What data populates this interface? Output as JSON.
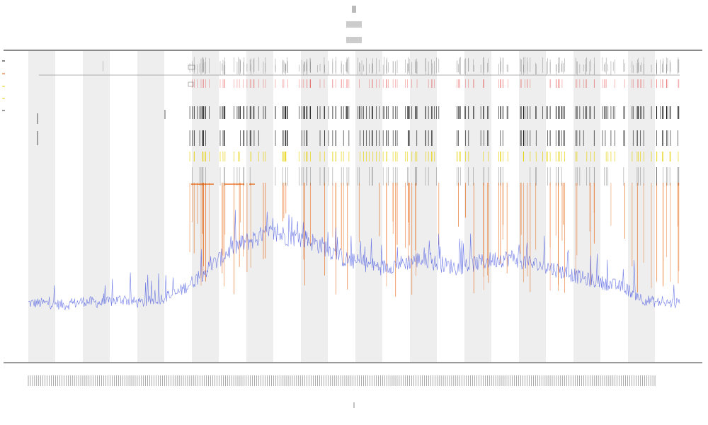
{
  "chart_data": {
    "type": "line",
    "title": "",
    "subtitle": "",
    "xlabel": "",
    "ylabel": "",
    "grid": false,
    "legend_placement": "top-left",
    "band_count": 12,
    "colors": {
      "background": "#ffffff",
      "band": "#eeeeee",
      "baseline": "#0000cc",
      "spikes": "#e65c00",
      "yellow": "#e6d000",
      "red": "#dd2222",
      "black": "#111111",
      "axis": "#333333"
    },
    "series": [
      {
        "key": "baseline",
        "color": "#3344dd",
        "values": [
          0.1,
          0.1,
          0.09,
          0.11,
          0.1,
          0.12,
          0.1,
          0.12,
          0.15,
          0.22,
          0.3,
          0.38,
          0.42,
          0.45,
          0.44,
          0.42,
          0.38,
          0.32,
          0.3,
          0.28,
          0.3,
          0.32,
          0.3,
          0.28,
          0.3,
          0.32,
          0.33,
          0.3,
          0.28,
          0.25,
          0.22,
          0.2,
          0.18,
          0.12,
          0.1,
          0.1
        ]
      },
      {
        "key": "spikes",
        "color": "#e65c00",
        "values": []
      },
      {
        "key": "yellow",
        "color": "#e6d000",
        "values": []
      },
      {
        "key": "red",
        "color": "#dd2222",
        "values": []
      }
    ]
  }
}
